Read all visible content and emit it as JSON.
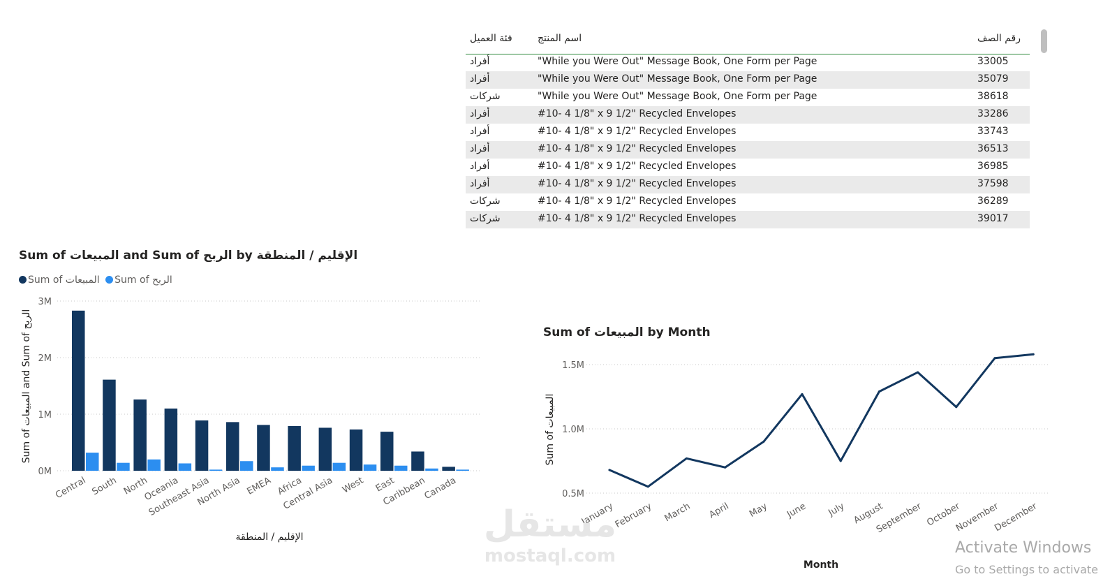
{
  "table": {
    "headers": {
      "segment": "فئة العميل",
      "product": "اسم المنتج",
      "row_id": "رقم الصف"
    },
    "rows": [
      {
        "segment": "أفراد",
        "product": "\"While you Were Out\" Message Book, One Form per Page",
        "row_id": "33005"
      },
      {
        "segment": "أفراد",
        "product": "\"While you Were Out\" Message Book, One Form per Page",
        "row_id": "35079"
      },
      {
        "segment": "شركات",
        "product": "\"While you Were Out\" Message Book, One Form per Page",
        "row_id": "38618"
      },
      {
        "segment": "أفراد",
        "product": "#10- 4 1/8\" x 9 1/2\" Recycled Envelopes",
        "row_id": "33286"
      },
      {
        "segment": "أفراد",
        "product": "#10- 4 1/8\" x 9 1/2\" Recycled Envelopes",
        "row_id": "33743"
      },
      {
        "segment": "أفراد",
        "product": "#10- 4 1/8\" x 9 1/2\" Recycled Envelopes",
        "row_id": "36513"
      },
      {
        "segment": "أفراد",
        "product": "#10- 4 1/8\" x 9 1/2\" Recycled Envelopes",
        "row_id": "36985"
      },
      {
        "segment": "أفراد",
        "product": "#10- 4 1/8\" x 9 1/2\" Recycled Envelopes",
        "row_id": "37598"
      },
      {
        "segment": "شركات",
        "product": "#10- 4 1/8\" x 9 1/2\" Recycled Envelopes",
        "row_id": "36289"
      },
      {
        "segment": "شركات",
        "product": "#10- 4 1/8\" x 9 1/2\" Recycled Envelopes",
        "row_id": "39017"
      }
    ]
  },
  "watermarks": {
    "logo_text": "مستقل",
    "logo_sub": "mostaql.com",
    "activate_title": "Activate Windows",
    "activate_sub": "Go to Settings to activate"
  },
  "colors": {
    "sales": "#12375f",
    "profit": "#2c8ef0",
    "line": "#12375f",
    "grid": "#c8c8c8",
    "axis_text": "#605e5c"
  },
  "chart_data": [
    {
      "type": "bar",
      "title": "Sum of المبيعات and Sum of الربح by الإقليم / المنطقة",
      "xlabel": "الإقليم / المنطقة",
      "ylabel": "Sum of المبيعات and Sum of الربح",
      "legend": "top-left",
      "grid": true,
      "yticks": [
        "0M",
        "1M",
        "2M",
        "3M"
      ],
      "ylim": [
        0,
        3000000
      ],
      "categories": [
        "Central",
        "South",
        "North",
        "Oceania",
        "Southeast Asia",
        "North Asia",
        "EMEA",
        "Africa",
        "Central Asia",
        "West",
        "East",
        "Caribbean",
        "Canada"
      ],
      "series": [
        {
          "name": "Sum of المبيعات",
          "values": [
            2830000,
            1610000,
            1260000,
            1100000,
            890000,
            860000,
            810000,
            790000,
            760000,
            730000,
            690000,
            340000,
            70000
          ]
        },
        {
          "name": "Sum of الربح",
          "values": [
            320000,
            140000,
            200000,
            130000,
            20000,
            170000,
            60000,
            90000,
            140000,
            110000,
            90000,
            40000,
            20000
          ]
        }
      ]
    },
    {
      "type": "line",
      "title": "Sum of المبيعات by Month",
      "xlabel": "Month",
      "ylabel": "Sum of المبيعات",
      "grid": true,
      "yticks": [
        "0.5M",
        "1.0M",
        "1.5M"
      ],
      "ylim": [
        500000,
        1500000
      ],
      "categories": [
        "January",
        "February",
        "March",
        "April",
        "May",
        "June",
        "July",
        "August",
        "September",
        "October",
        "November",
        "December"
      ],
      "series": [
        {
          "values": [
            680000,
            550000,
            770000,
            700000,
            900000,
            1270000,
            750000,
            1290000,
            1440000,
            1170000,
            1550000,
            1580000
          ]
        }
      ]
    }
  ]
}
